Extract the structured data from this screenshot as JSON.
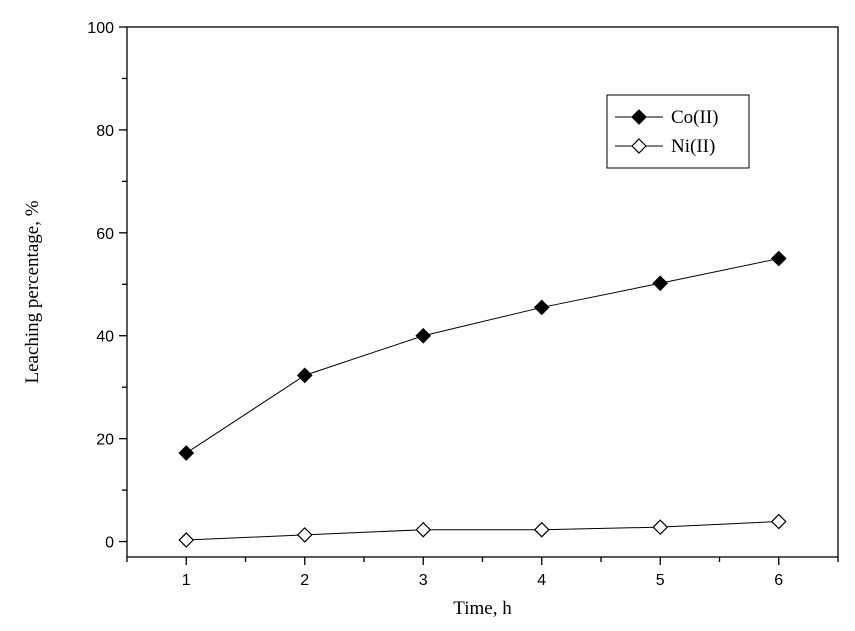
{
  "chart_data": {
    "type": "line",
    "title": "",
    "xlabel": "Time, h",
    "ylabel": "Leaching percentage, %",
    "x": [
      1,
      2,
      3,
      4,
      5,
      6
    ],
    "xlim": [
      0.5,
      6.5
    ],
    "ylim": [
      -3,
      100
    ],
    "xticks": [
      1,
      2,
      3,
      4,
      5,
      6
    ],
    "yticks": [
      0,
      20,
      40,
      60,
      80,
      100
    ],
    "grid": false,
    "legend_position": "top-right",
    "series": [
      {
        "name": "Co(II)",
        "marker": "filled-diamond",
        "values": [
          17.2,
          32.3,
          40.0,
          45.5,
          50.2,
          55.0
        ]
      },
      {
        "name": "Ni(II)",
        "marker": "open-diamond",
        "values": [
          0.3,
          1.3,
          2.3,
          2.3,
          2.8,
          3.9
        ]
      }
    ]
  }
}
